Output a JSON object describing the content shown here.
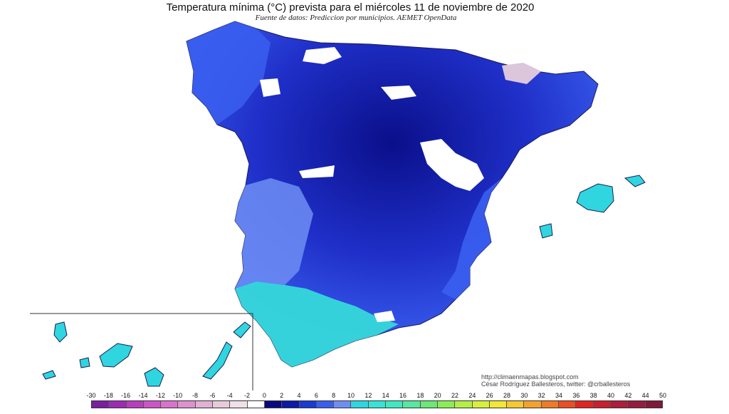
{
  "map": {
    "title": "Temperatura mínima (°C) prevista para el miércoles 11 de noviembre de 2020",
    "subtitle": "Fuente de datos: Prediccion por municipios. AEMET OpenData",
    "credits": {
      "url": "http://climaenmapas.blogspot.com",
      "author": "César Rodríguez Ballesteros, twitter: @crballesteros"
    },
    "colors": {
      "snow": "#ffffff",
      "very_cold": "#0a0f8a",
      "cold": "#1f2fc8",
      "cool": "#3a5ff0",
      "mild": "#6f8ef5",
      "warm": "#2fd6e0"
    },
    "legend": {
      "labels": [
        "-30",
        "-18",
        "-16",
        "-14",
        "-12",
        "-10",
        "-8",
        "-6",
        "-4",
        "-2",
        "0",
        "2",
        "4",
        "6",
        "8",
        "10",
        "12",
        "14",
        "16",
        "18",
        "20",
        "22",
        "24",
        "26",
        "28",
        "30",
        "32",
        "34",
        "36",
        "38",
        "40",
        "42",
        "44",
        "50"
      ],
      "colors": [
        "#7a1fa0",
        "#9a2db4",
        "#b83ec0",
        "#cc55c8",
        "#d674cc",
        "#dc92cf",
        "#e2b0d4",
        "#e8cbdb",
        "#efe0e8",
        "#ffffff",
        "#0a0a80",
        "#0b1aa8",
        "#1a3ad0",
        "#3a5ff0",
        "#6f8ef5",
        "#2fd6e0",
        "#37e3d6",
        "#40e8c0",
        "#56e8a0",
        "#6ae878",
        "#8cec58",
        "#b4ee46",
        "#d8ee3c",
        "#f2e636",
        "#f6c832",
        "#f4a22c",
        "#f07a26",
        "#ea4e22",
        "#e02424",
        "#c8202e",
        "#b01c3a",
        "#981a40",
        "#801a3a"
      ]
    },
    "marks": {
      "tick": "▲"
    }
  }
}
